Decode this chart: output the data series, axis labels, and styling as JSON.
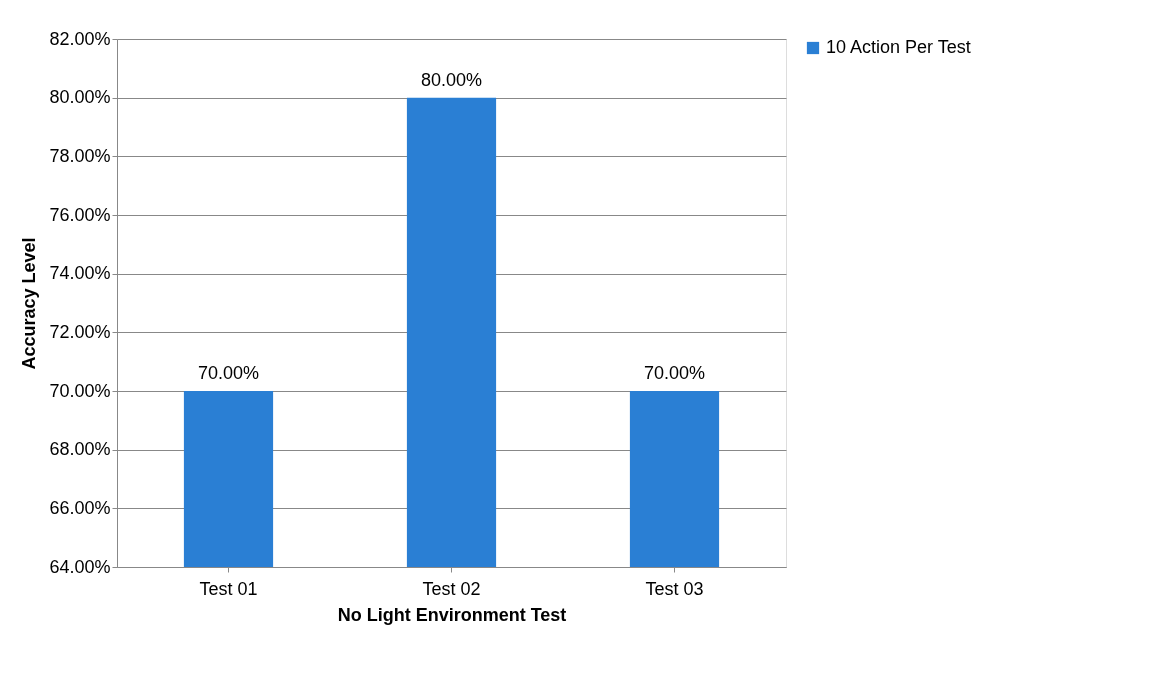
{
  "chart_data": {
    "type": "bar",
    "xlabel": "No Light Environment Test",
    "ylabel": "Accuracy Level",
    "categories": [
      "Test 01",
      "Test 02",
      "Test 03"
    ],
    "series": [
      {
        "name": "10 Action Per Test",
        "color": "#2a7fd4",
        "values": [
          70,
          80,
          70
        ],
        "value_labels": [
          "70.00%",
          "80.00%",
          "70.00%"
        ]
      }
    ],
    "ylim": [
      64,
      82
    ],
    "yticks": [
      {
        "value": 64,
        "label": "64.00%"
      },
      {
        "value": 66,
        "label": "66.00%"
      },
      {
        "value": 68,
        "label": "68.00%"
      },
      {
        "value": 70,
        "label": "70.00%"
      },
      {
        "value": 72,
        "label": "72.00%"
      },
      {
        "value": 74,
        "label": "74.00%"
      },
      {
        "value": 76,
        "label": "76.00%"
      },
      {
        "value": 78,
        "label": "78.00%"
      },
      {
        "value": 80,
        "label": "80.00%"
      },
      {
        "value": 82,
        "label": "82.00%"
      }
    ],
    "grid": "y",
    "legend": "right"
  }
}
